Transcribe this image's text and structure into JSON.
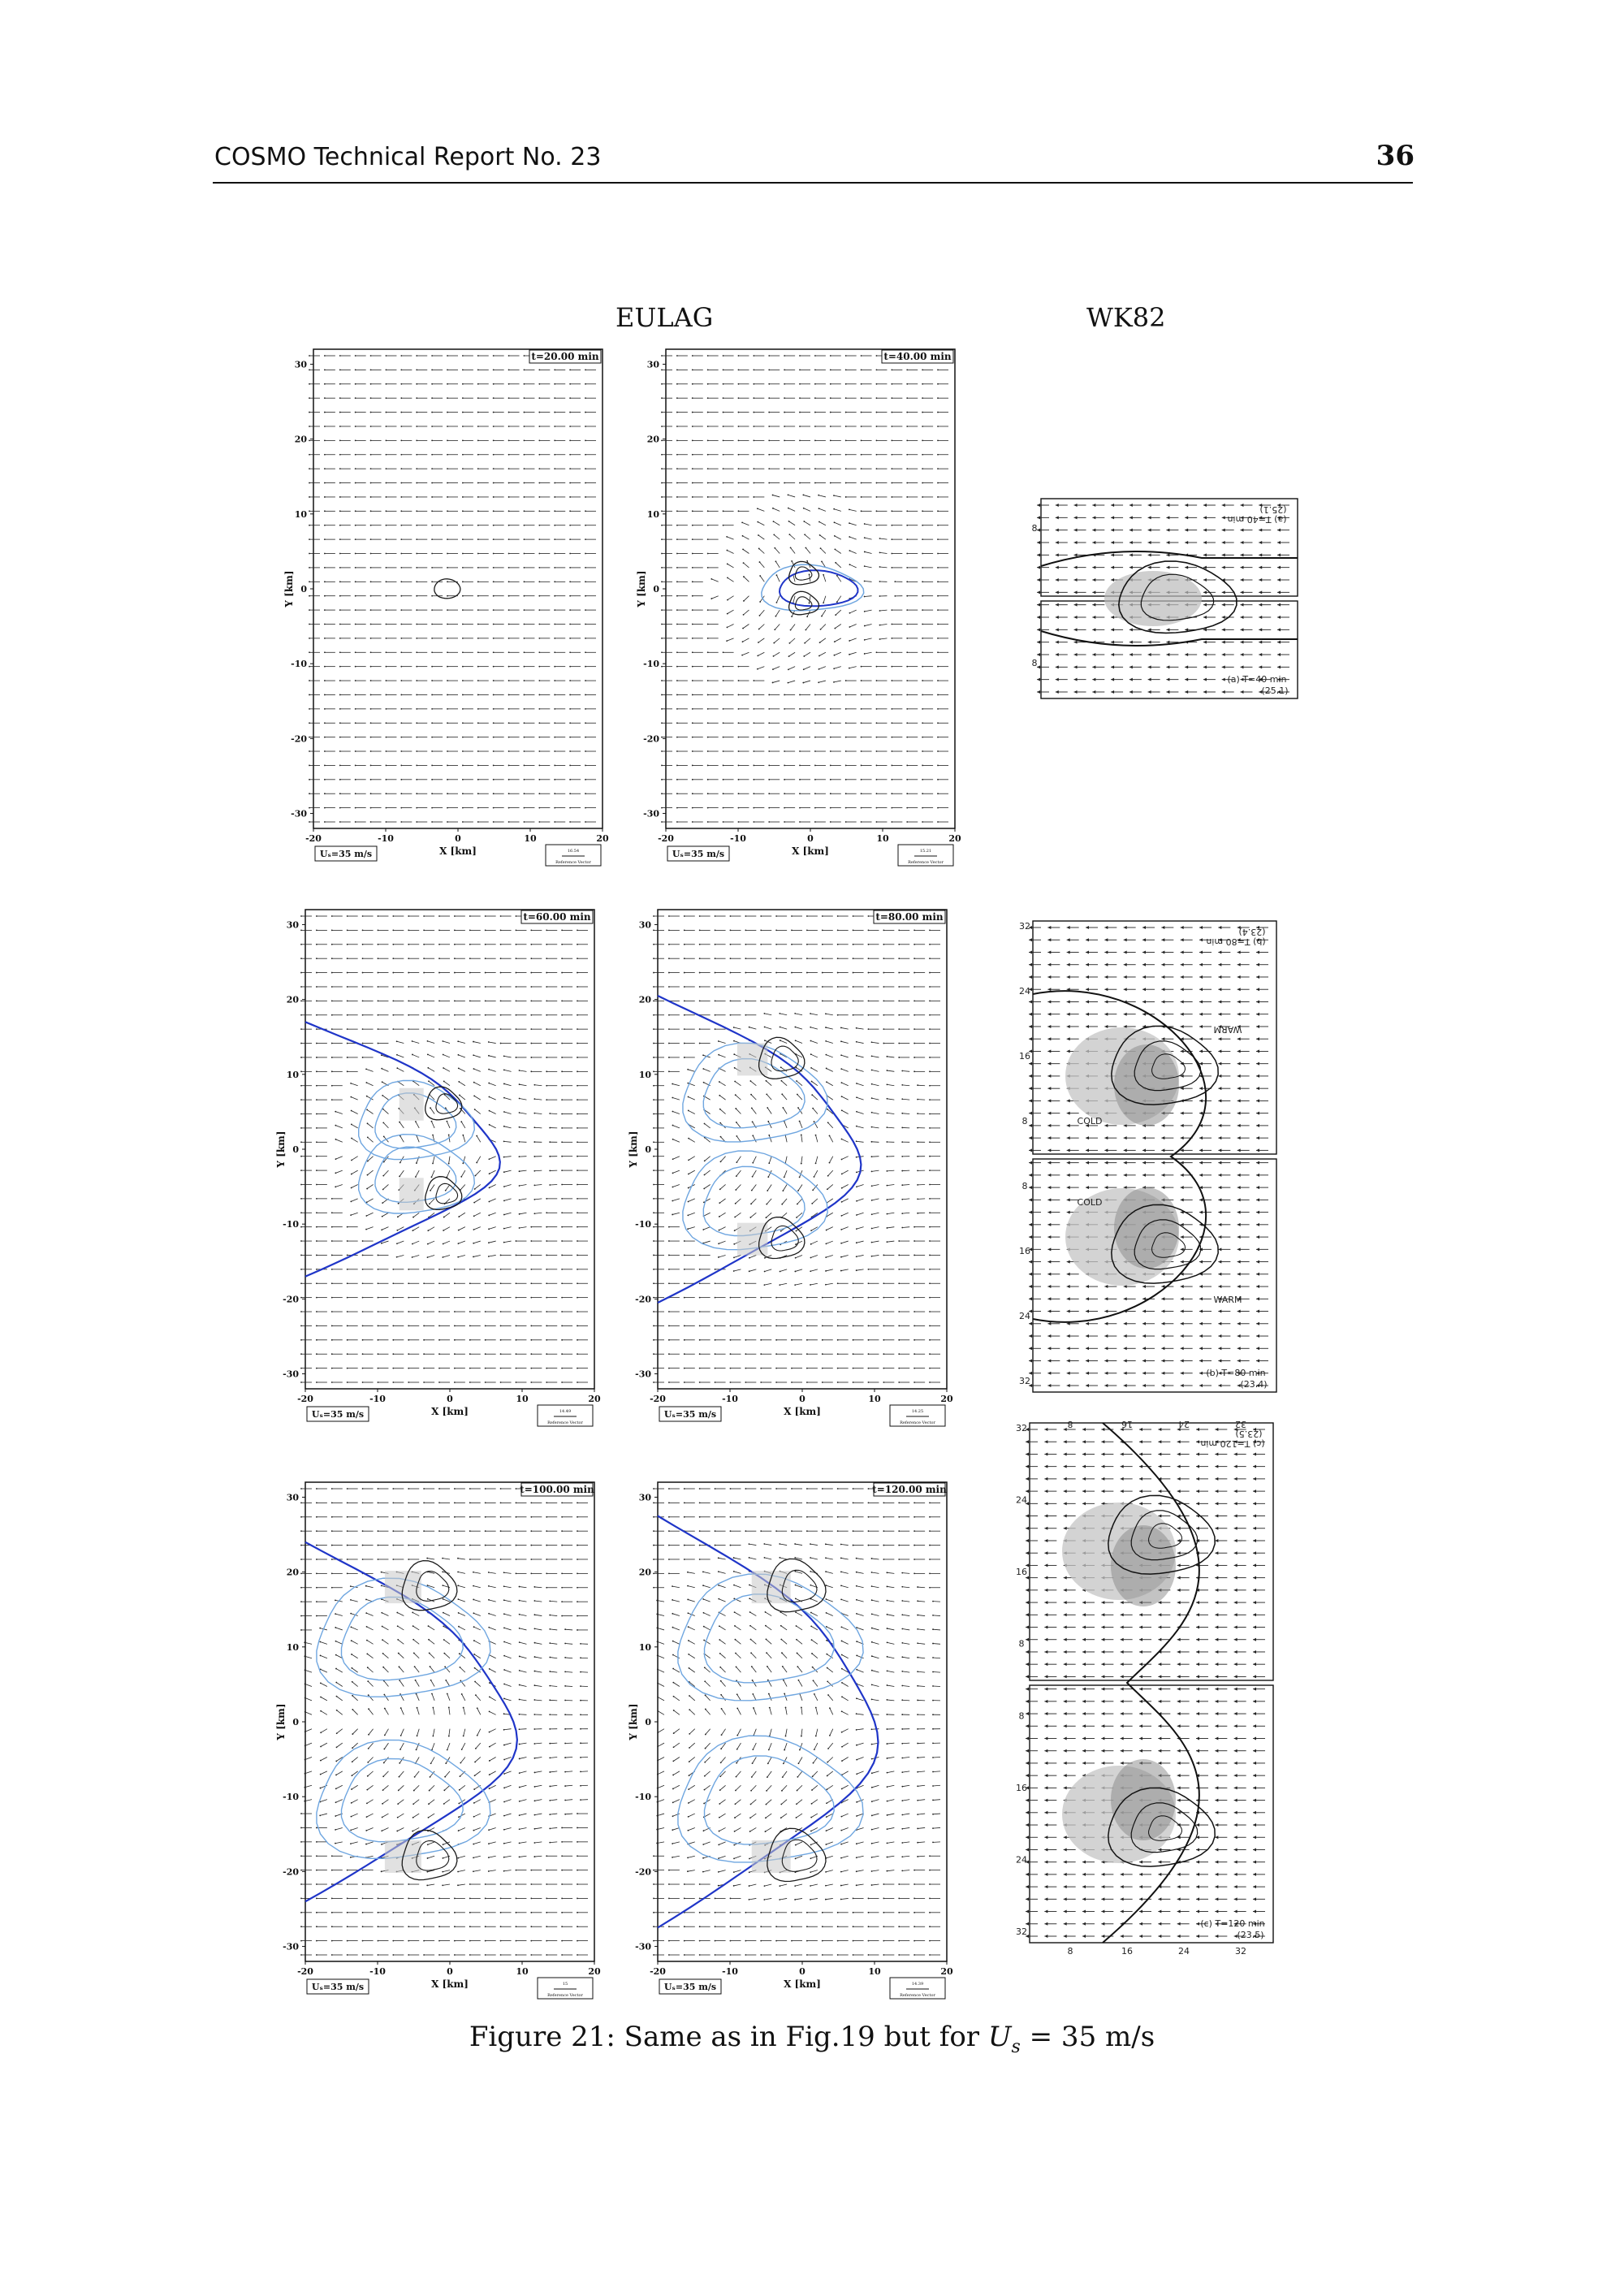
{
  "header": {
    "left": "COSMO Technical Report No. 23",
    "page_number": "36"
  },
  "columns": {
    "left": "EULAG",
    "right": "WK82"
  },
  "eulag_panels": [
    {
      "time": "t=20.00 min",
      "ref": "16.54"
    },
    {
      "time": "t=40.00 min",
      "ref": "15.21"
    },
    {
      "time": "t=60.00 min",
      "ref": "14.49"
    },
    {
      "time": "t=80.00 min",
      "ref": "14.25"
    },
    {
      "time": "t=100.00 min",
      "ref": "15"
    },
    {
      "time": "t=120.00 min",
      "ref": "14.39"
    }
  ],
  "axes": {
    "xlabel": "X [km]",
    "ylabel": "Y [km]",
    "x_ticks": [
      "-20",
      "-10",
      "0",
      "10",
      "20"
    ],
    "y_ticks": [
      "30",
      "20",
      "10",
      "0",
      "-10",
      "-20",
      "-30"
    ],
    "shear_label": "Uₛ=35 m/s",
    "ref_label": "Reference Vector"
  },
  "wk82_panels": [
    {
      "label_top": "(a) T=40 min",
      "value_top": "(25.1)",
      "label_bottom": "(a) T=40 min",
      "value_bottom": "(25.1)",
      "ticks": [
        "8",
        "8"
      ]
    },
    {
      "label_top": "(b) T=80 min",
      "value_top": "(23.4)",
      "label_bottom": "(b) T=80 min",
      "value_bottom": "(23.4)",
      "side_ticks": [
        "32",
        "24",
        "16",
        "8",
        "8",
        "16",
        "24",
        "32"
      ],
      "words": [
        "WARM",
        "COLD",
        "COLD",
        "WARM"
      ]
    },
    {
      "label_top": "(c) T=120 min",
      "value_top": "(23.5)",
      "label_bottom": "(c) T=120 min",
      "value_bottom": "(23.5)",
      "top_ticks": [
        "8",
        "16",
        "24",
        "32"
      ],
      "bottom_ticks": [
        "8",
        "16",
        "24",
        "32"
      ],
      "side_ticks": [
        "32",
        "24",
        "16",
        "8",
        "8",
        "16",
        "24",
        "32"
      ]
    }
  ],
  "caption": {
    "prefix": "Figure 21: Same as in Fig.19 but for",
    "var": "U",
    "sub": "s",
    "suffix": "= 35 m/s"
  },
  "colors": {
    "dark_contour": "#1a1a1a",
    "blue_line": "#1f35c8",
    "light_blue": "#6fa6e0"
  }
}
